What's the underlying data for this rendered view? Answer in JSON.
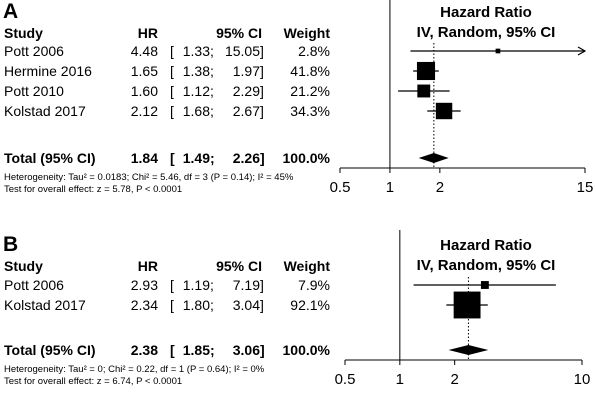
{
  "chart_data": [
    {
      "type": "forest",
      "panel_label": "A",
      "title": "Hazard Ratio",
      "subtitle": "IV, Random, 95% CI",
      "columns": [
        "Study",
        "HR",
        "95% CI",
        "Weight"
      ],
      "studies": [
        {
          "name": "Pott 2006",
          "hr": "4.48",
          "ci_low": "1.33",
          "ci_high": "15.05",
          "weight": "2.8%",
          "hr_value": 4.48,
          "low_value": 1.33,
          "high_value": 15.05,
          "weight_value": 2.8,
          "arrow_right": true
        },
        {
          "name": "Hermine 2016",
          "hr": "1.65",
          "ci_low": "1.38",
          "ci_high": "1.97",
          "weight": "41.8%",
          "hr_value": 1.65,
          "low_value": 1.38,
          "high_value": 1.97,
          "weight_value": 41.8
        },
        {
          "name": "Pott 2010",
          "hr": "1.60",
          "ci_low": "1.12",
          "ci_high": "2.29",
          "weight": "21.2%",
          "hr_value": 1.6,
          "low_value": 1.12,
          "high_value": 2.29,
          "weight_value": 21.2
        },
        {
          "name": "Kolstad 2017",
          "hr": "2.12",
          "ci_low": "1.68",
          "ci_high": "2.67",
          "weight": "34.3%",
          "hr_value": 2.12,
          "low_value": 1.68,
          "high_value": 2.67,
          "weight_value": 34.3
        }
      ],
      "total": {
        "name": "Total (95% CI)",
        "hr": "1.84",
        "ci_low": "1.49",
        "ci_high": "2.26",
        "weight": "100.0%",
        "hr_value": 1.84,
        "low_value": 1.49,
        "high_value": 2.26
      },
      "heterogeneity": "Heterogeneity: Tau² = 0.0183; Chi² = 5.46, df = 3 (P = 0.14); I² = 45%",
      "overall_effect": "Test for overall effect: z = 5.78, P < 0.0001",
      "x_scale": "log",
      "x_ticks": [
        {
          "value": 0.5,
          "label": "0.5"
        },
        {
          "value": 1,
          "label": "1"
        },
        {
          "value": 2,
          "label": "2"
        },
        {
          "value": 15,
          "label": "15"
        }
      ],
      "xlim": [
        0.5,
        15
      ],
      "reference_line": 1
    },
    {
      "type": "forest",
      "panel_label": "B",
      "title": "Hazard Ratio",
      "subtitle": "IV, Random, 95% CI",
      "columns": [
        "Study",
        "HR",
        "95% CI",
        "Weight"
      ],
      "studies": [
        {
          "name": "Pott 2006",
          "hr": "2.93",
          "ci_low": "1.19",
          "ci_high": "7.19",
          "weight": "7.9%",
          "hr_value": 2.93,
          "low_value": 1.19,
          "high_value": 7.19,
          "weight_value": 7.9
        },
        {
          "name": "Kolstad 2017",
          "hr": "2.34",
          "ci_low": "1.80",
          "ci_high": "3.04",
          "weight": "92.1%",
          "hr_value": 2.34,
          "low_value": 1.8,
          "high_value": 3.04,
          "weight_value": 92.1
        }
      ],
      "total": {
        "name": "Total (95% CI)",
        "hr": "2.38",
        "ci_low": "1.85",
        "ci_high": "3.06",
        "weight": "100.0%",
        "hr_value": 2.38,
        "low_value": 1.85,
        "high_value": 3.06
      },
      "heterogeneity": "Heterogeneity: Tau² = 0; Chi² = 0.22, df = 1 (P = 0.64); I² = 0%",
      "overall_effect": "Test for overall effect: z = 6.74, P < 0.0001",
      "x_scale": "log",
      "x_ticks": [
        {
          "value": 0.5,
          "label": "0.5"
        },
        {
          "value": 1,
          "label": "1"
        },
        {
          "value": 2,
          "label": "2"
        },
        {
          "value": 10,
          "label": "10"
        }
      ],
      "xlim": [
        0.5,
        10
      ],
      "reference_line": 1
    }
  ]
}
